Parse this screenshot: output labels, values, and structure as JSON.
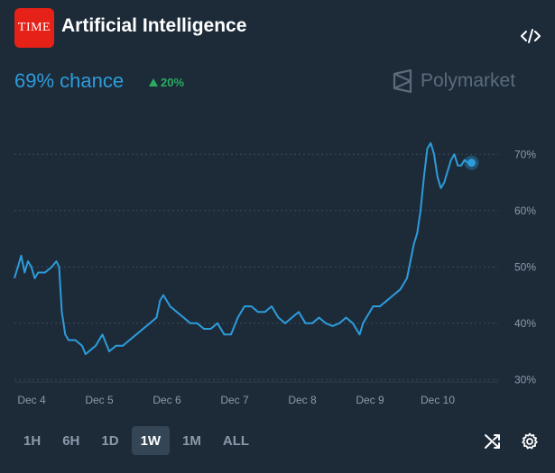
{
  "header": {
    "logo_text": "TIME",
    "title": "Artificial Intelligence",
    "brand": "Polymarket",
    "chance": "69% chance",
    "delta": "20%"
  },
  "icons": {
    "embed": "code-icon",
    "shuffle": "shuffle-icon",
    "settings": "gear-icon",
    "delta": "triangle-up-icon",
    "brand": "polymarket-logo-icon"
  },
  "colors": {
    "background": "#1d2b39",
    "line": "#2d9cdb",
    "up": "#27ae60",
    "logo": "#e62117"
  },
  "timeframes": [
    {
      "label": "1H",
      "active": false
    },
    {
      "label": "6H",
      "active": false
    },
    {
      "label": "1D",
      "active": false
    },
    {
      "label": "1W",
      "active": true
    },
    {
      "label": "1M",
      "active": false
    },
    {
      "label": "ALL",
      "active": false
    }
  ],
  "chart_data": {
    "type": "line",
    "x_ticks": [
      "Dec 4",
      "Dec 5",
      "Dec 6",
      "Dec 7",
      "Dec 8",
      "Dec 9",
      "Dec 10"
    ],
    "y_ticks": [
      "30%",
      "40%",
      "50%",
      "60%",
      "70%"
    ],
    "ylim": [
      27,
      75
    ],
    "xlim": [
      0,
      7
    ],
    "grid": "horizontal-dotted",
    "y_axis_side": "right",
    "last_value": 68.5,
    "series": [
      {
        "values": [
          [
            0.0,
            48
          ],
          [
            0.05,
            50
          ],
          [
            0.1,
            52
          ],
          [
            0.15,
            49
          ],
          [
            0.2,
            51
          ],
          [
            0.25,
            50
          ],
          [
            0.3,
            48
          ],
          [
            0.35,
            49
          ],
          [
            0.45,
            49
          ],
          [
            0.55,
            50
          ],
          [
            0.62,
            51
          ],
          [
            0.66,
            50
          ],
          [
            0.7,
            42
          ],
          [
            0.75,
            38
          ],
          [
            0.8,
            37
          ],
          [
            0.9,
            37
          ],
          [
            1.0,
            36
          ],
          [
            1.05,
            34.5
          ],
          [
            1.1,
            35
          ],
          [
            1.2,
            36
          ],
          [
            1.3,
            38
          ],
          [
            1.4,
            35
          ],
          [
            1.5,
            36
          ],
          [
            1.6,
            36
          ],
          [
            1.7,
            37
          ],
          [
            1.8,
            38
          ],
          [
            1.9,
            39
          ],
          [
            2.0,
            40
          ],
          [
            2.1,
            41
          ],
          [
            2.15,
            44
          ],
          [
            2.2,
            45
          ],
          [
            2.3,
            43
          ],
          [
            2.4,
            42
          ],
          [
            2.5,
            41
          ],
          [
            2.6,
            40
          ],
          [
            2.7,
            40
          ],
          [
            2.8,
            39
          ],
          [
            2.9,
            39
          ],
          [
            3.0,
            40
          ],
          [
            3.1,
            38
          ],
          [
            3.2,
            38
          ],
          [
            3.3,
            41
          ],
          [
            3.4,
            43
          ],
          [
            3.5,
            43
          ],
          [
            3.6,
            42
          ],
          [
            3.7,
            42
          ],
          [
            3.8,
            43
          ],
          [
            3.9,
            41
          ],
          [
            4.0,
            40
          ],
          [
            4.1,
            41
          ],
          [
            4.2,
            42
          ],
          [
            4.3,
            40
          ],
          [
            4.4,
            40
          ],
          [
            4.5,
            41
          ],
          [
            4.6,
            40
          ],
          [
            4.7,
            39.5
          ],
          [
            4.8,
            40
          ],
          [
            4.9,
            41
          ],
          [
            5.0,
            40
          ],
          [
            5.1,
            38
          ],
          [
            5.15,
            40
          ],
          [
            5.2,
            41
          ],
          [
            5.3,
            43
          ],
          [
            5.4,
            43
          ],
          [
            5.5,
            44
          ],
          [
            5.6,
            45
          ],
          [
            5.7,
            46
          ],
          [
            5.75,
            47
          ],
          [
            5.8,
            48
          ],
          [
            5.85,
            51
          ],
          [
            5.9,
            54
          ],
          [
            5.95,
            56
          ],
          [
            6.0,
            60
          ],
          [
            6.05,
            66
          ],
          [
            6.1,
            71
          ],
          [
            6.15,
            72
          ],
          [
            6.2,
            70
          ],
          [
            6.25,
            66
          ],
          [
            6.3,
            64
          ],
          [
            6.35,
            65
          ],
          [
            6.4,
            67
          ],
          [
            6.45,
            69
          ],
          [
            6.5,
            70
          ],
          [
            6.55,
            68
          ],
          [
            6.6,
            68
          ],
          [
            6.65,
            69
          ],
          [
            6.7,
            68.5
          ]
        ]
      }
    ]
  }
}
